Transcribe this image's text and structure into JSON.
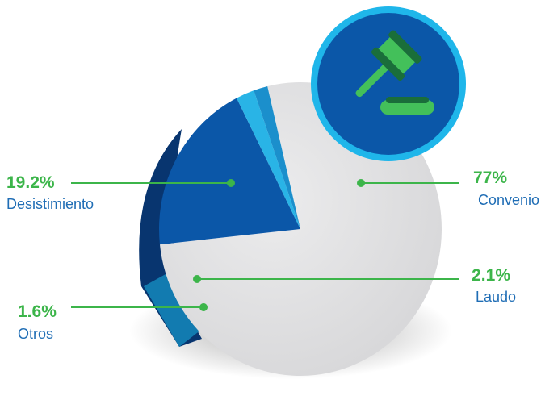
{
  "chart_data": {
    "type": "pie",
    "slices": [
      {
        "label": "Convenio",
        "value": 77,
        "display": "77%",
        "color": "#e3e3e4"
      },
      {
        "label": "Desistimiento",
        "value": 19.2,
        "display": "19.2%",
        "color": "#0b57a8"
      },
      {
        "label": "Laudo",
        "value": 2.1,
        "display": "2.1%",
        "color": "#29b4e6"
      },
      {
        "label": "Otros",
        "value": 1.6,
        "display": "1.6%",
        "color": "#1b8fcc"
      }
    ],
    "title": "",
    "legend": "none",
    "icon": "gavel-icon"
  },
  "colors": {
    "accent_green": "#3cb54a",
    "label_blue": "#1f6db5",
    "badge_fill": "#0b57a8",
    "badge_ring": "#1fb6ea",
    "gavel_green": "#43c05a",
    "gavel_dark": "#1a6e3a"
  }
}
